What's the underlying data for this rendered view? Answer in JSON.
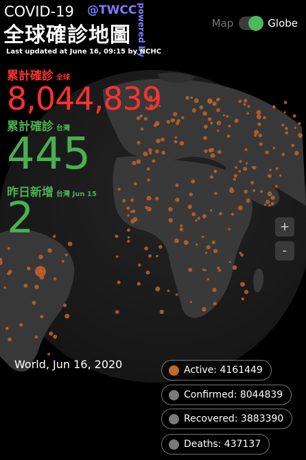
{
  "header": {
    "title": "COVID-19",
    "handle": "@TWCC",
    "powered_by": "powered by",
    "zh_title": "全球確診地圖",
    "last_updated": "Last updated at June 16, 09:15 by NCHC"
  },
  "view_toggle": {
    "map_label": "Map",
    "globe_label": "Globe",
    "selected": "Globe"
  },
  "stats": {
    "world": {
      "label": "累計確診",
      "scope": "全球",
      "value": "8,044,839",
      "color": "#ff3030"
    },
    "taiwan": {
      "label": "累計確診",
      "scope": "台灣",
      "value": "445",
      "color": "#49b04f"
    },
    "daily": {
      "label": "昨日新增",
      "scope": "台灣 Jun 15",
      "value": "2",
      "color": "#49b04f"
    }
  },
  "zoom": {
    "in_label": "+",
    "out_label": "-"
  },
  "selection": {
    "date_label": "World, Jun 16, 2020"
  },
  "legend": [
    {
      "label": "Active: 4161449",
      "dot_color": "#c06a2a"
    },
    {
      "label": "Confirmed: 8044839",
      "dot_color": "#7a7a7a"
    },
    {
      "label": "Recovered: 3883390",
      "dot_color": "#7a7a7a"
    },
    {
      "label": "Deaths: 437137",
      "dot_color": "#7a7a7a"
    }
  ],
  "colors": {
    "case_dot": "#c0622a",
    "land": "#3a3a3a",
    "ocean": "#1e1e1e"
  }
}
